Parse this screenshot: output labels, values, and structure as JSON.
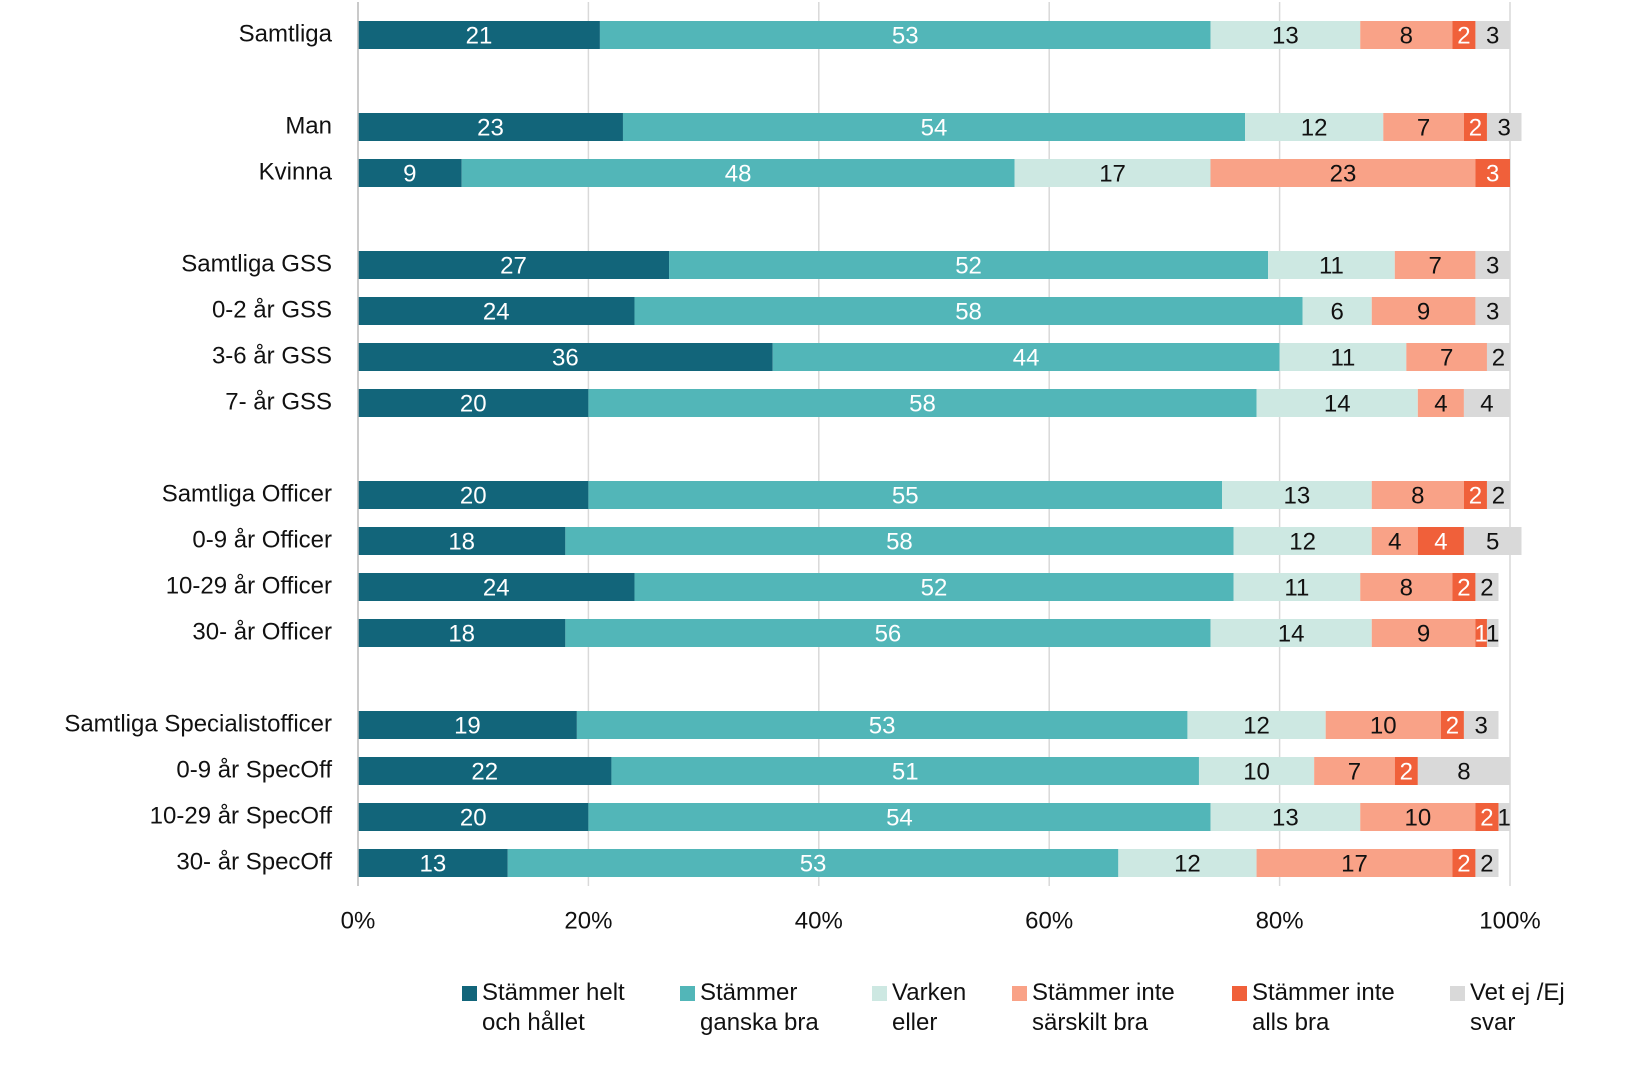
{
  "chart_data": {
    "type": "stacked_bar_horizontal",
    "categories": [
      "Samtliga",
      null,
      "Man",
      "Kvinna",
      null,
      "Samtliga GSS",
      "0-2 år GSS",
      "3-6 år GSS",
      "7- år GSS",
      null,
      "Samtliga Officer",
      "0-9 år Officer",
      "10-29 år Officer",
      "30- år Officer",
      null,
      "Samtliga Specialistofficer",
      "0-9 år SpecOff",
      "10-29 år SpecOff",
      "30- år SpecOff"
    ],
    "series": [
      {
        "name": "Stämmer helt och hållet",
        "color": "#12657a",
        "label_color": "#ffffff",
        "values": [
          21,
          null,
          23,
          9,
          null,
          27,
          24,
          36,
          20,
          null,
          20,
          18,
          24,
          18,
          null,
          19,
          22,
          20,
          13
        ]
      },
      {
        "name": "Stämmer ganska bra",
        "color": "#52b6b8",
        "label_color": "#ffffff",
        "values": [
          53,
          null,
          54,
          48,
          null,
          52,
          58,
          44,
          58,
          null,
          55,
          58,
          52,
          56,
          null,
          53,
          51,
          54,
          53
        ]
      },
      {
        "name": "Varken eller",
        "color": "#cde8e2",
        "label_color": "#111111",
        "values": [
          13,
          null,
          12,
          17,
          null,
          11,
          6,
          11,
          14,
          null,
          13,
          12,
          11,
          14,
          null,
          12,
          10,
          13,
          12
        ]
      },
      {
        "name": "Stämmer inte särskilt bra",
        "color": "#f9a287",
        "label_color": "#111111",
        "values": [
          8,
          null,
          7,
          23,
          null,
          7,
          9,
          7,
          4,
          null,
          8,
          4,
          8,
          9,
          null,
          10,
          7,
          10,
          17
        ]
      },
      {
        "name": "Stämmer inte alls bra",
        "color": "#f0603a",
        "label_color": "#ffffff",
        "values": [
          2,
          null,
          2,
          3,
          null,
          null,
          null,
          null,
          null,
          null,
          2,
          4,
          2,
          1,
          null,
          2,
          2,
          2,
          2
        ]
      },
      {
        "name": "Vet ej /Ej svar",
        "color": "#d9d9d9",
        "label_color": "#111111",
        "values": [
          3,
          null,
          3,
          null,
          null,
          3,
          3,
          2,
          4,
          null,
          2,
          5,
          2,
          1,
          null,
          3,
          8,
          1,
          2
        ]
      }
    ],
    "xlim": [
      0,
      100
    ],
    "xticks": [
      {
        "value": 0,
        "label": "0%"
      },
      {
        "value": 20,
        "label": "20%"
      },
      {
        "value": 40,
        "label": "40%"
      },
      {
        "value": 60,
        "label": "60%"
      },
      {
        "value": 80,
        "label": "80%"
      },
      {
        "value": 100,
        "label": "100%"
      }
    ],
    "grid": true
  }
}
